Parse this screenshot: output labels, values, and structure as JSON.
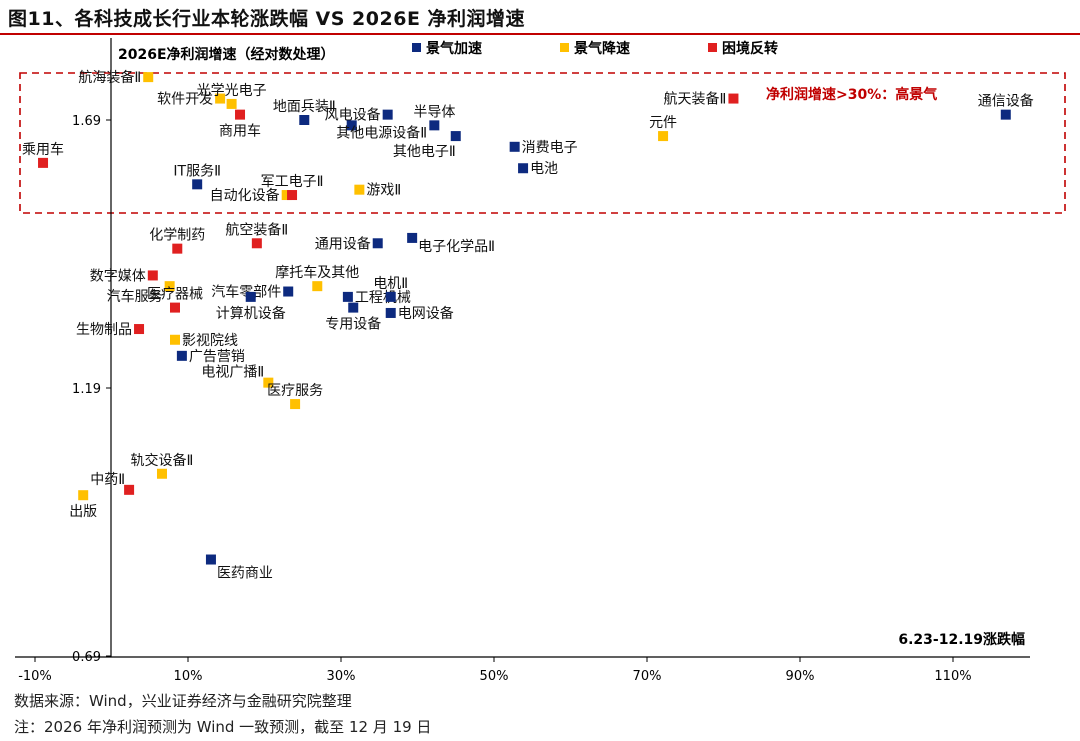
{
  "title": "图11、各科技成长行业本轮涨跌幅 VS 2026E 净利润增速",
  "footer": {
    "source": "数据来源：Wind，兴业证券经济与金融研究院整理",
    "note": "注：2026 年净利润预测为 Wind 一致预测，截至 12 月 19 日"
  },
  "chart_data": {
    "type": "scatter",
    "title": "",
    "xlabel": "6.23-12.19涨跌幅",
    "ylabel": "2026E净利润增速（经对数处理）",
    "xlim": [
      -12,
      118
    ],
    "ylim": [
      0.69,
      1.8
    ],
    "xticks": [
      "-10%",
      "10%",
      "30%",
      "50%",
      "70%",
      "90%",
      "110%"
    ],
    "xtick_values": [
      -10,
      10,
      30,
      50,
      70,
      90,
      110
    ],
    "yticks": [
      "0.69",
      "1.19",
      "1.69"
    ],
    "ytick_values": [
      0.69,
      1.19,
      1.69
    ],
    "grid": false,
    "legend_position": "top",
    "annotation": "净利润增速>30%：高景气",
    "highlight_box": {
      "y_min": 1.52,
      "color": "#c00000",
      "style": "dashed"
    },
    "series": [
      {
        "name": "景气加速",
        "color": "#0d2a7f",
        "points": [
          {
            "label": "地面兵装Ⅱ",
            "x": 25.2,
            "y": 1.69
          },
          {
            "label": "风电设备",
            "x": 36.1,
            "y": 1.7
          },
          {
            "label": "其他电源设备Ⅱ",
            "x": 31.4,
            "y": 1.68
          },
          {
            "label": "半导体",
            "x": 42.2,
            "y": 1.68
          },
          {
            "label": "其他电子Ⅱ",
            "x": 45.0,
            "y": 1.66
          },
          {
            "label": "消费电子",
            "x": 52.7,
            "y": 1.64
          },
          {
            "label": "电池",
            "x": 53.8,
            "y": 1.6
          },
          {
            "label": "通信设备",
            "x": 116.9,
            "y": 1.7
          },
          {
            "label": "IT服务Ⅱ",
            "x": 11.2,
            "y": 1.57
          },
          {
            "label": "通用设备",
            "x": 34.8,
            "y": 1.46
          },
          {
            "label": "电子化学品Ⅱ",
            "x": 39.3,
            "y": 1.47
          },
          {
            "label": "汽车零部件",
            "x": 23.1,
            "y": 1.37
          },
          {
            "label": "计算机设备",
            "x": 18.2,
            "y": 1.36
          },
          {
            "label": "工程机械",
            "x": 30.9,
            "y": 1.36
          },
          {
            "label": "专用设备",
            "x": 31.6,
            "y": 1.34
          },
          {
            "label": "电机Ⅱ",
            "x": 36.5,
            "y": 1.36
          },
          {
            "label": "电网设备",
            "x": 36.5,
            "y": 1.33
          },
          {
            "label": "广告营销",
            "x": 9.2,
            "y": 1.25
          },
          {
            "label": "医药商业",
            "x": 13.0,
            "y": 0.87
          }
        ]
      },
      {
        "name": "景气降速",
        "color": "#ffc000",
        "points": [
          {
            "label": "航海装备Ⅱ",
            "x": 4.8,
            "y": 1.77
          },
          {
            "label": "软件开发",
            "x": 14.2,
            "y": 1.73
          },
          {
            "label": "光学光电子",
            "x": 15.7,
            "y": 1.72
          },
          {
            "label": "元件",
            "x": 72.1,
            "y": 1.66
          },
          {
            "label": "自动化设备",
            "x": 22.9,
            "y": 1.55
          },
          {
            "label": "游戏Ⅱ",
            "x": 32.4,
            "y": 1.56
          },
          {
            "label": "汽车服务",
            "x": 7.6,
            "y": 1.38
          },
          {
            "label": "摩托车及其他",
            "x": 26.9,
            "y": 1.38
          },
          {
            "label": "影视院线",
            "x": 8.3,
            "y": 1.28
          },
          {
            "label": "电视广播Ⅱ",
            "x": 20.5,
            "y": 1.2
          },
          {
            "label": "医疗服务",
            "x": 24.0,
            "y": 1.16
          },
          {
            "label": "轨交设备Ⅱ",
            "x": 6.6,
            "y": 1.03
          },
          {
            "label": "出版",
            "x": -3.7,
            "y": 0.99
          }
        ]
      },
      {
        "name": "困境反转",
        "color": "#e02020",
        "points": [
          {
            "label": "商用车",
            "x": 16.8,
            "y": 1.7
          },
          {
            "label": "航天装备Ⅱ",
            "x": 81.3,
            "y": 1.73
          },
          {
            "label": "乘用车",
            "x": -8.95,
            "y": 1.61
          },
          {
            "label": "军工电子Ⅱ",
            "x": 23.6,
            "y": 1.55
          },
          {
            "label": "化学制药",
            "x": 8.6,
            "y": 1.45
          },
          {
            "label": "航空装备Ⅱ",
            "x": 19.0,
            "y": 1.46
          },
          {
            "label": "数字媒体",
            "x": 5.4,
            "y": 1.4
          },
          {
            "label": "医疗器械",
            "x": 8.3,
            "y": 1.34
          },
          {
            "label": "生物制品",
            "x": 3.6,
            "y": 1.3
          },
          {
            "label": "中药Ⅱ",
            "x": 2.3,
            "y": 1.0
          }
        ]
      }
    ]
  }
}
